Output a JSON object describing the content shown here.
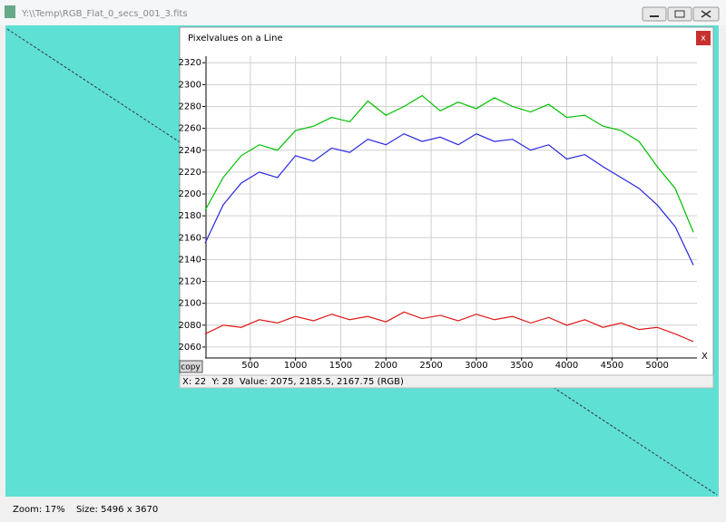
{
  "window": {
    "title": "Y:\\\\Temp\\RGB_Flat_0_secs_001_3.fits"
  },
  "popup": {
    "title": "Pixelvalues on a Line",
    "close": "x",
    "copy_button": "copy",
    "readout": "X: 22  Y: 28  Value: 2075, 2185.5, 2167.75 (RGB)"
  },
  "status_bar": {
    "zoom": "Zoom: 17%",
    "size": "Size: 5496 x 3670"
  },
  "chart_data": {
    "type": "line",
    "x_label": "X",
    "x": [
      0,
      200,
      400,
      600,
      800,
      1000,
      1200,
      1400,
      1600,
      1800,
      2000,
      2200,
      2400,
      2600,
      2800,
      3000,
      3200,
      3400,
      3600,
      3800,
      4000,
      4200,
      4400,
      4600,
      4800,
      5000,
      5200,
      5400
    ],
    "series": [
      {
        "color": "#00c000",
        "values": [
          2185,
          2215,
          2235,
          2245,
          2240,
          2258,
          2262,
          2270,
          2266,
          2285,
          2272,
          2280,
          2290,
          2276,
          2284,
          2278,
          2288,
          2280,
          2275,
          2282,
          2270,
          2272,
          2262,
          2258,
          2248,
          2225,
          2205,
          2165
        ]
      },
      {
        "color": "#2828e0",
        "values": [
          2155,
          2190,
          2210,
          2220,
          2215,
          2235,
          2230,
          2242,
          2238,
          2250,
          2245,
          2255,
          2248,
          2252,
          2245,
          2255,
          2248,
          2250,
          2240,
          2245,
          2232,
          2236,
          2225,
          2215,
          2205,
          2190,
          2170,
          2135
        ]
      },
      {
        "color": "#e01818",
        "values": [
          2072,
          2080,
          2078,
          2085,
          2082,
          2088,
          2084,
          2090,
          2085,
          2088,
          2083,
          2092,
          2086,
          2089,
          2084,
          2090,
          2085,
          2088,
          2082,
          2087,
          2080,
          2085,
          2078,
          2082,
          2076,
          2078,
          2072,
          2065
        ]
      }
    ],
    "xlim": [
      0,
      5440
    ],
    "ylim": [
      2050,
      2326
    ],
    "xticks": [
      500,
      1000,
      1500,
      2000,
      2500,
      3000,
      3500,
      4000,
      4500,
      5000
    ],
    "yticks": [
      2060,
      2080,
      2100,
      2120,
      2140,
      2160,
      2180,
      2200,
      2220,
      2240,
      2260,
      2280,
      2300,
      2320
    ],
    "grid": true
  }
}
